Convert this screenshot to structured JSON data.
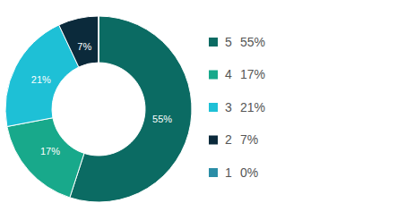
{
  "chart_data": {
    "type": "pie",
    "categories": [
      "5",
      "4",
      "3",
      "2",
      "1"
    ],
    "values": [
      55,
      17,
      21,
      7,
      0
    ],
    "value_labels": [
      "55%",
      "17%",
      "21%",
      "7%",
      "0%"
    ],
    "colors": [
      "#0b6b63",
      "#18a98b",
      "#1ec0d6",
      "#0b2a3b",
      "#2a8da6"
    ],
    "data_labels": true,
    "legend": "right"
  }
}
